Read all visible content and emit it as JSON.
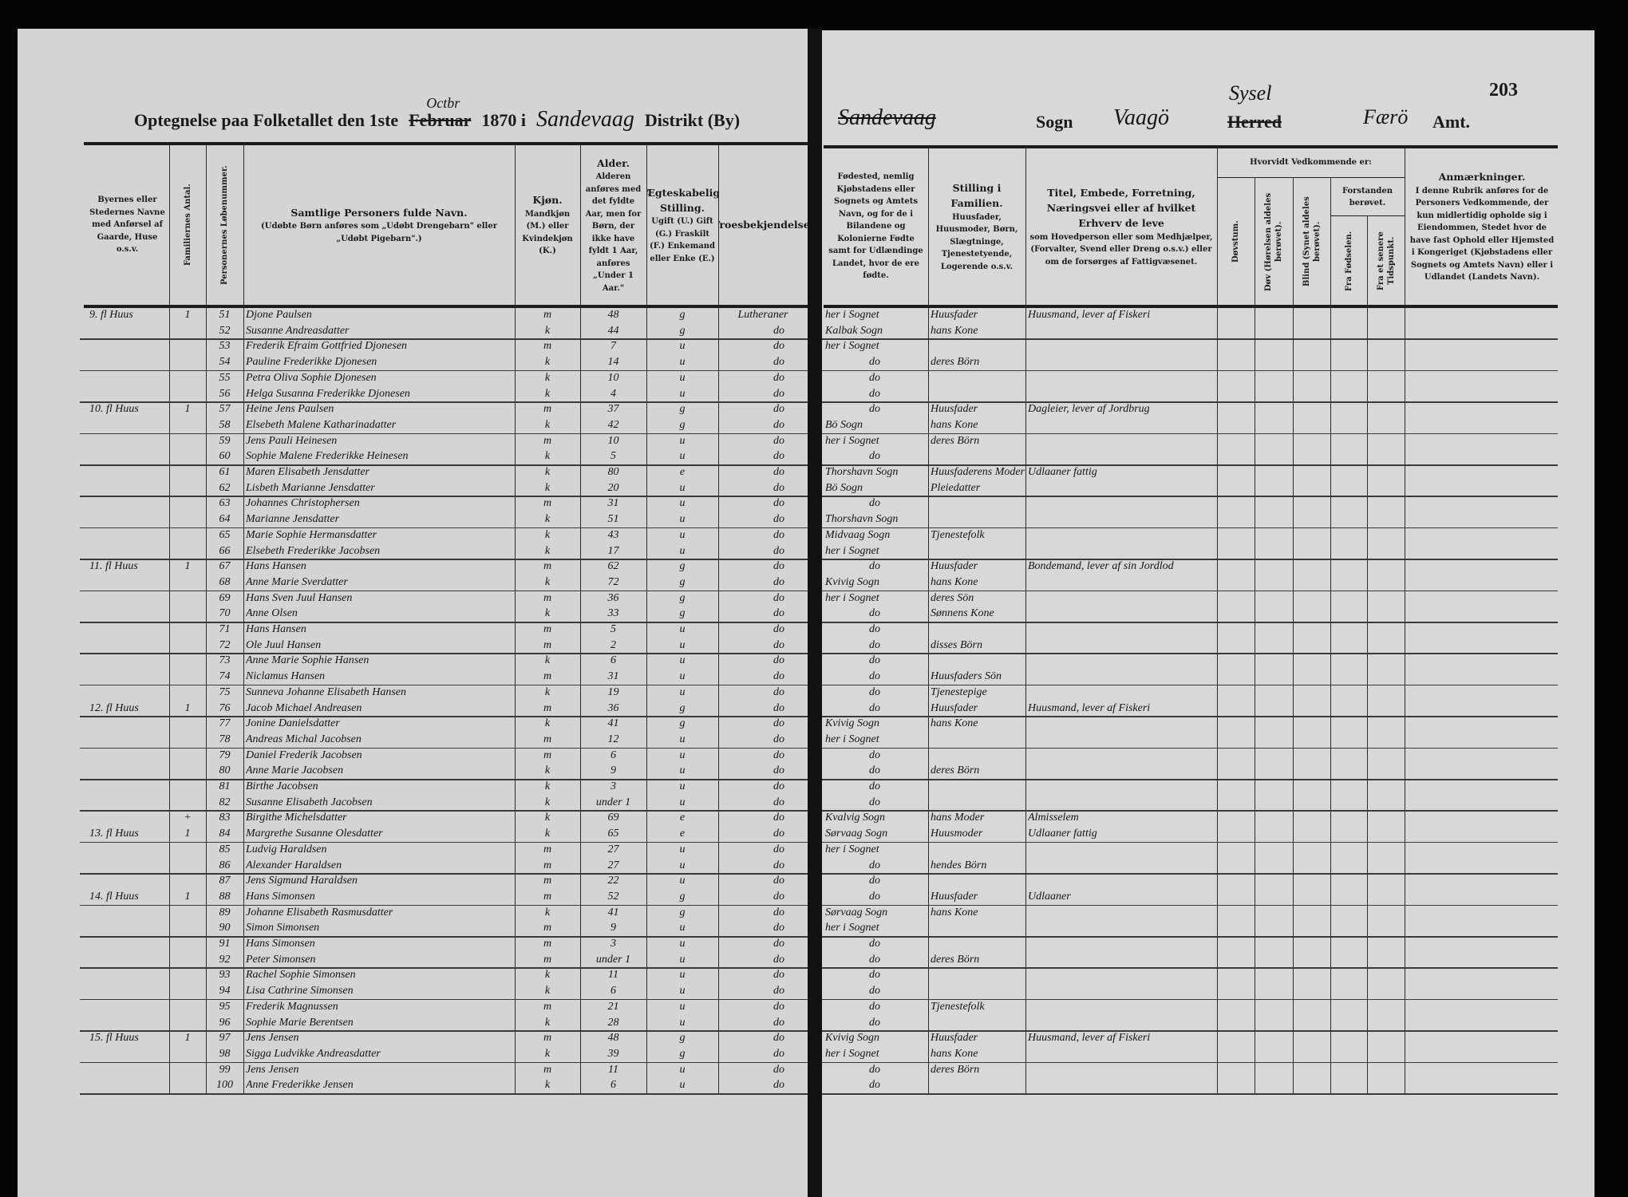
{
  "left_header": {
    "title_prefix": "Optegnelse paa Folketallet den 1ste",
    "month_struck": "Februar",
    "month_written": "Octbr",
    "year_in": "1870 i",
    "place_written": "Sandevaag",
    "district_label": "Distrikt (By)"
  },
  "right_header": {
    "place_struck": "Sandevaag",
    "sogn_label": "Sogn",
    "sogn_written": "Vaagö",
    "herred_struck": "Herred",
    "herred_written": "Sysel",
    "amt_written": "Færö",
    "amt_label": "Amt.",
    "page_number": "203"
  },
  "columns": {
    "place": "Byernes eller Stedernes Navne med Anførsel af Gaarde, Huse o.s.v.",
    "families": "Familiernes Antal.",
    "person_no": "Personernes Løbenummer.",
    "name_title": "Samtlige Personers fulde Navn.",
    "name_note": "(Udøbte Børn anføres som „Udøbt Drengebarn\" eller „Udøbt Pigebarn\".)",
    "sex_title": "Kjøn.",
    "sex_note": "Mandkjøn (M.) eller Kvindekjøn (K.)",
    "age_title": "Alder.",
    "age_note": "Alderen anføres med det fyldte Aar, men for Børn, der ikke have fyldt 1 Aar, anføres „Under 1 Aar.\"",
    "civil_title": "Ægteskabelig Stilling.",
    "civil_note": "Ugift (U.) Gift (G.) Fraskilt (F.) Enkemand eller Enke (E.)",
    "religion": "Troesbekjendelse.",
    "birthplace": "Fødested, nemlig Kjøbstadens eller Sognets og Amtets Navn, og for de i Bilandene og Kolonierne Fødte samt for Udlændinge Landet, hvor de ere fødte.",
    "position_title": "Stilling i Familien.",
    "position_note": "Huusfader, Huusmoder, Børn, Slægtninge, Tjenestetyende, Logerende o.s.v.",
    "occupation_title": "Titel, Embede, Forretning, Næringsvei eller af hvilket Erhverv de leve",
    "occupation_note": "som Hovedperson eller som Medhjælper, (Forvalter, Svend eller Dreng o.s.v.) eller om de forsørges af Fattigvæsenet.",
    "condition_group": "Hvorvidt Vedkommende er:",
    "deafmute": "Døvstum.",
    "deaf": "Døv (Hørelsen aldeles berøvet).",
    "blind": "Blind (Synet aldeles berøvet).",
    "insane_group": "Forstanden berøvet.",
    "insane_birth": "Fra Fødselen.",
    "insane_later": "Fra et senere Tidspunkt.",
    "remarks_title": "Anmærkninger.",
    "remarks_note": "I denne Rubrik anføres for de Personers Vedkommende, der kun midlertidig opholde sig i Eiendommen, Stedet hvor de have fast Ophold eller Hjemsted i Kongeriget (Kjøbstadens eller Sognets og Amtets Navn) eller i Udlandet (Landets Navn)."
  },
  "rows": [
    {
      "place": "9. fl Huus",
      "fam": "1",
      "no": "51",
      "name": "Djone Paulsen",
      "sex": "m",
      "age": "48",
      "civil": "g",
      "rel": "Lutheraner",
      "birth": "her i Sognet",
      "pos": "Huusfader",
      "occ": "Huusmand, lever af Fiskeri"
    },
    {
      "place": "",
      "fam": "",
      "no": "52",
      "name": "Susanne Andreasdatter",
      "sex": "k",
      "age": "44",
      "civil": "g",
      "rel": "do",
      "birth": "Kalbak Sogn",
      "pos": "hans Kone",
      "occ": ""
    },
    {
      "place": "",
      "fam": "",
      "no": "53",
      "name": "Frederik Efraim Gottfried Djonesen",
      "sex": "m",
      "age": "7",
      "civil": "u",
      "rel": "do",
      "birth": "her i Sognet",
      "pos": "",
      "occ": ""
    },
    {
      "place": "",
      "fam": "",
      "no": "54",
      "name": "Pauline Frederikke Djonesen",
      "sex": "k",
      "age": "14",
      "civil": "u",
      "rel": "do",
      "birth": "do",
      "pos": "deres Börn",
      "occ": ""
    },
    {
      "place": "",
      "fam": "",
      "no": "55",
      "name": "Petra Oliva Sophie Djonesen",
      "sex": "k",
      "age": "10",
      "civil": "u",
      "rel": "do",
      "birth": "do",
      "pos": "",
      "occ": ""
    },
    {
      "place": "",
      "fam": "",
      "no": "56",
      "name": "Helga Susanna Frederikke Djonesen",
      "sex": "k",
      "age": "4",
      "civil": "u",
      "rel": "do",
      "birth": "do",
      "pos": "",
      "occ": ""
    },
    {
      "place": "10. fl Huus",
      "fam": "1",
      "no": "57",
      "name": "Heine Jens Paulsen",
      "sex": "m",
      "age": "37",
      "civil": "g",
      "rel": "do",
      "birth": "do",
      "pos": "Huusfader",
      "occ": "Dagleier, lever af Jordbrug"
    },
    {
      "place": "",
      "fam": "",
      "no": "58",
      "name": "Elsebeth Malene Katharinadatter",
      "sex": "k",
      "age": "42",
      "civil": "g",
      "rel": "do",
      "birth": "Bö Sogn",
      "pos": "hans Kone",
      "occ": ""
    },
    {
      "place": "",
      "fam": "",
      "no": "59",
      "name": "Jens Pauli Heinesen",
      "sex": "m",
      "age": "10",
      "civil": "u",
      "rel": "do",
      "birth": "her i Sognet",
      "pos": "deres Börn",
      "occ": ""
    },
    {
      "place": "",
      "fam": "",
      "no": "60",
      "name": "Sophie Malene Frederikke Heinesen",
      "sex": "k",
      "age": "5",
      "civil": "u",
      "rel": "do",
      "birth": "do",
      "pos": "",
      "occ": ""
    },
    {
      "place": "",
      "fam": "",
      "no": "61",
      "name": "Maren Elisabeth Jensdatter",
      "sex": "k",
      "age": "80",
      "civil": "e",
      "rel": "do",
      "birth": "Thorshavn Sogn",
      "pos": "Huusfaderens Moder",
      "occ": "Udlaaner fattig"
    },
    {
      "place": "",
      "fam": "",
      "no": "62",
      "name": "Lisbeth Marianne Jensdatter",
      "sex": "k",
      "age": "20",
      "civil": "u",
      "rel": "do",
      "birth": "Bö Sogn",
      "pos": "Pleiedatter",
      "occ": ""
    },
    {
      "place": "",
      "fam": "",
      "no": "63",
      "name": "Johannes Christophersen",
      "sex": "m",
      "age": "31",
      "civil": "u",
      "rel": "do",
      "birth": "do",
      "pos": "",
      "occ": ""
    },
    {
      "place": "",
      "fam": "",
      "no": "64",
      "name": "Marianne Jensdatter",
      "sex": "k",
      "age": "51",
      "civil": "u",
      "rel": "do",
      "birth": "Thorshavn Sogn",
      "pos": "",
      "occ": ""
    },
    {
      "place": "",
      "fam": "",
      "no": "65",
      "name": "Marie Sophie Hermansdatter",
      "sex": "k",
      "age": "43",
      "civil": "u",
      "rel": "do",
      "birth": "Midvaag Sogn",
      "pos": "Tjenestefolk",
      "occ": ""
    },
    {
      "place": "",
      "fam": "",
      "no": "66",
      "name": "Elsebeth Frederikke Jacobsen",
      "sex": "k",
      "age": "17",
      "civil": "u",
      "rel": "do",
      "birth": "her i Sognet",
      "pos": "",
      "occ": ""
    },
    {
      "place": "11. fl Huus",
      "fam": "1",
      "no": "67",
      "name": "Hans Hansen",
      "sex": "m",
      "age": "62",
      "civil": "g",
      "rel": "do",
      "birth": "do",
      "pos": "Huusfader",
      "occ": "Bondemand, lever af sin Jordlod"
    },
    {
      "place": "",
      "fam": "",
      "no": "68",
      "name": "Anne Marie Sverdatter",
      "sex": "k",
      "age": "72",
      "civil": "g",
      "rel": "do",
      "birth": "Kvivig Sogn",
      "pos": "hans Kone",
      "occ": ""
    },
    {
      "place": "",
      "fam": "",
      "no": "69",
      "name": "Hans Sven Juul Hansen",
      "sex": "m",
      "age": "36",
      "civil": "g",
      "rel": "do",
      "birth": "her i Sognet",
      "pos": "deres Sön",
      "occ": ""
    },
    {
      "place": "",
      "fam": "",
      "no": "70",
      "name": "Anne Olsen",
      "sex": "k",
      "age": "33",
      "civil": "g",
      "rel": "do",
      "birth": "do",
      "pos": "Sønnens Kone",
      "occ": ""
    },
    {
      "place": "",
      "fam": "",
      "no": "71",
      "name": "Hans Hansen",
      "sex": "m",
      "age": "5",
      "civil": "u",
      "rel": "do",
      "birth": "do",
      "pos": "",
      "occ": ""
    },
    {
      "place": "",
      "fam": "",
      "no": "72",
      "name": "Ole Juul Hansen",
      "sex": "m",
      "age": "2",
      "civil": "u",
      "rel": "do",
      "birth": "do",
      "pos": "disses Börn",
      "occ": ""
    },
    {
      "place": "",
      "fam": "",
      "no": "73",
      "name": "Anne Marie Sophie Hansen",
      "sex": "k",
      "age": "6",
      "civil": "u",
      "rel": "do",
      "birth": "do",
      "pos": "",
      "occ": ""
    },
    {
      "place": "",
      "fam": "",
      "no": "74",
      "name": "Niclamus Hansen",
      "sex": "m",
      "age": "31",
      "civil": "u",
      "rel": "do",
      "birth": "do",
      "pos": "Huusfaders Sön",
      "occ": ""
    },
    {
      "place": "",
      "fam": "",
      "no": "75",
      "name": "Sunneva Johanne Elisabeth Hansen",
      "sex": "k",
      "age": "19",
      "civil": "u",
      "rel": "do",
      "birth": "do",
      "pos": "Tjenestepige",
      "occ": ""
    },
    {
      "place": "12. fl Huus",
      "fam": "1",
      "no": "76",
      "name": "Jacob Michael Andreasen",
      "sex": "m",
      "age": "36",
      "civil": "g",
      "rel": "do",
      "birth": "do",
      "pos": "Huusfader",
      "occ": "Huusmand, lever af Fiskeri"
    },
    {
      "place": "",
      "fam": "",
      "no": "77",
      "name": "Jonine Danielsdatter",
      "sex": "k",
      "age": "41",
      "civil": "g",
      "rel": "do",
      "birth": "Kvivig Sogn",
      "pos": "hans Kone",
      "occ": ""
    },
    {
      "place": "",
      "fam": "",
      "no": "78",
      "name": "Andreas Michal Jacobsen",
      "sex": "m",
      "age": "12",
      "civil": "u",
      "rel": "do",
      "birth": "her i Sognet",
      "pos": "",
      "occ": ""
    },
    {
      "place": "",
      "fam": "",
      "no": "79",
      "name": "Daniel Frederik Jacobsen",
      "sex": "m",
      "age": "6",
      "civil": "u",
      "rel": "do",
      "birth": "do",
      "pos": "",
      "occ": ""
    },
    {
      "place": "",
      "fam": "",
      "no": "80",
      "name": "Anne Marie Jacobsen",
      "sex": "k",
      "age": "9",
      "civil": "u",
      "rel": "do",
      "birth": "do",
      "pos": "deres Börn",
      "occ": ""
    },
    {
      "place": "",
      "fam": "",
      "no": "81",
      "name": "Birthe Jacobsen",
      "sex": "k",
      "age": "3",
      "civil": "u",
      "rel": "do",
      "birth": "do",
      "pos": "",
      "occ": ""
    },
    {
      "place": "",
      "fam": "",
      "no": "82",
      "name": "Susanne Elisabeth Jacobsen",
      "sex": "k",
      "age": "under 1",
      "civil": "u",
      "rel": "do",
      "birth": "do",
      "pos": "",
      "occ": ""
    },
    {
      "place": "",
      "fam": "+",
      "no": "83",
      "name": "Birgithe Michelsdatter",
      "sex": "k",
      "age": "69",
      "civil": "e",
      "rel": "do",
      "birth": "Kvalvig Sogn",
      "pos": "hans Moder",
      "occ": "Almisselem"
    },
    {
      "place": "13. fl Huus",
      "fam": "1",
      "no": "84",
      "name": "Margrethe Susanne Olesdatter",
      "sex": "k",
      "age": "65",
      "civil": "e",
      "rel": "do",
      "birth": "Sørvaag Sogn",
      "pos": "Huusmoder",
      "occ": "Udlaaner fattig"
    },
    {
      "place": "",
      "fam": "",
      "no": "85",
      "name": "Ludvig Haraldsen",
      "sex": "m",
      "age": "27",
      "civil": "u",
      "rel": "do",
      "birth": "her i Sognet",
      "pos": "",
      "occ": ""
    },
    {
      "place": "",
      "fam": "",
      "no": "86",
      "name": "Alexander Haraldsen",
      "sex": "m",
      "age": "27",
      "civil": "u",
      "rel": "do",
      "birth": "do",
      "pos": "hendes Börn",
      "occ": ""
    },
    {
      "place": "",
      "fam": "",
      "no": "87",
      "name": "Jens Sigmund Haraldsen",
      "sex": "m",
      "age": "22",
      "civil": "u",
      "rel": "do",
      "birth": "do",
      "pos": "",
      "occ": ""
    },
    {
      "place": "14. fl Huus",
      "fam": "1",
      "no": "88",
      "name": "Hans Simonsen",
      "sex": "m",
      "age": "52",
      "civil": "g",
      "rel": "do",
      "birth": "do",
      "pos": "Huusfader",
      "occ": "Udlaaner"
    },
    {
      "place": "",
      "fam": "",
      "no": "89",
      "name": "Johanne Elisabeth Rasmusdatter",
      "sex": "k",
      "age": "41",
      "civil": "g",
      "rel": "do",
      "birth": "Sørvaag Sogn",
      "pos": "hans Kone",
      "occ": ""
    },
    {
      "place": "",
      "fam": "",
      "no": "90",
      "name": "Simon Simonsen",
      "sex": "m",
      "age": "9",
      "civil": "u",
      "rel": "do",
      "birth": "her i Sognet",
      "pos": "",
      "occ": ""
    },
    {
      "place": "",
      "fam": "",
      "no": "91",
      "name": "Hans Simonsen",
      "sex": "m",
      "age": "3",
      "civil": "u",
      "rel": "do",
      "birth": "do",
      "pos": "",
      "occ": ""
    },
    {
      "place": "",
      "fam": "",
      "no": "92",
      "name": "Peter Simonsen",
      "sex": "m",
      "age": "under 1",
      "civil": "u",
      "rel": "do",
      "birth": "do",
      "pos": "deres Börn",
      "occ": ""
    },
    {
      "place": "",
      "fam": "",
      "no": "93",
      "name": "Rachel Sophie Simonsen",
      "sex": "k",
      "age": "11",
      "civil": "u",
      "rel": "do",
      "birth": "do",
      "pos": "",
      "occ": ""
    },
    {
      "place": "",
      "fam": "",
      "no": "94",
      "name": "Lisa Cathrine Simonsen",
      "sex": "k",
      "age": "6",
      "civil": "u",
      "rel": "do",
      "birth": "do",
      "pos": "",
      "occ": ""
    },
    {
      "place": "",
      "fam": "",
      "no": "95",
      "name": "Frederik Magnussen",
      "sex": "m",
      "age": "21",
      "civil": "u",
      "rel": "do",
      "birth": "do",
      "pos": "Tjenestefolk",
      "occ": ""
    },
    {
      "place": "",
      "fam": "",
      "no": "96",
      "name": "Sophie Marie Berentsen",
      "sex": "k",
      "age": "28",
      "civil": "u",
      "rel": "do",
      "birth": "do",
      "pos": "",
      "occ": ""
    },
    {
      "place": "15. fl Huus",
      "fam": "1",
      "no": "97",
      "name": "Jens Jensen",
      "sex": "m",
      "age": "48",
      "civil": "g",
      "rel": "do",
      "birth": "Kvivig Sogn",
      "pos": "Huusfader",
      "occ": "Huusmand, lever af Fiskeri"
    },
    {
      "place": "",
      "fam": "",
      "no": "98",
      "name": "Sigga Ludvikke Andreasdatter",
      "sex": "k",
      "age": "39",
      "civil": "g",
      "rel": "do",
      "birth": "her i Sognet",
      "pos": "hans Kone",
      "occ": ""
    },
    {
      "place": "",
      "fam": "",
      "no": "99",
      "name": "Jens Jensen",
      "sex": "m",
      "age": "11",
      "civil": "u",
      "rel": "do",
      "birth": "do",
      "pos": "deres Börn",
      "occ": ""
    },
    {
      "place": "",
      "fam": "",
      "no": "100",
      "name": "Anne Frederikke Jensen",
      "sex": "k",
      "age": "6",
      "civil": "u",
      "rel": "do",
      "birth": "do",
      "pos": "",
      "occ": ""
    }
  ]
}
